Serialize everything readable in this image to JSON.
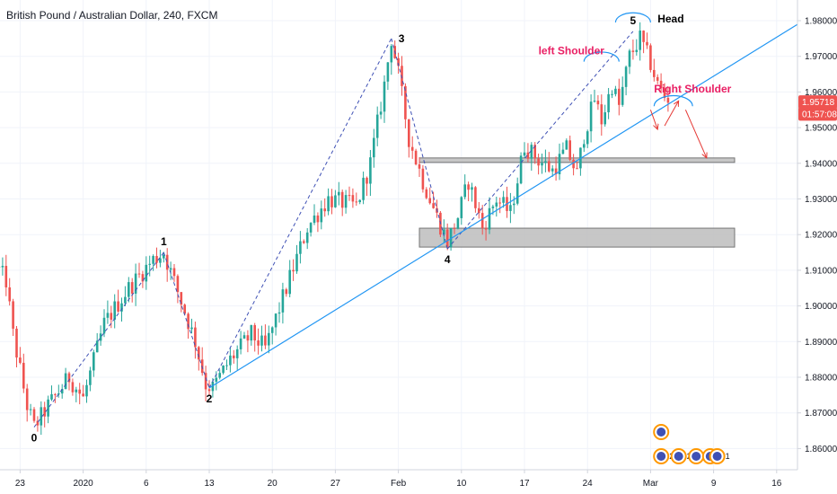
{
  "chart_data": {
    "type": "candlestick",
    "title": "British Pound / Australian Dollar, 240, FXCM",
    "ylim": [
      1.855,
      1.985
    ],
    "y_ticks": [
      1.86,
      1.87,
      1.88,
      1.89,
      1.9,
      1.91,
      1.92,
      1.93,
      1.94,
      1.95,
      1.96,
      1.97,
      1.98
    ],
    "y_tick_labels": [
      "1.86000",
      "1.87000",
      "1.88000",
      "1.89000",
      "1.90000",
      "1.91000",
      "1.92000",
      "1.93000",
      "1.94000",
      "1.95000",
      "1.96000",
      "1.97000",
      "1.98000"
    ],
    "x_ticks": [
      {
        "label": "23",
        "bar": 6
      },
      {
        "label": "2020",
        "bar": 24
      },
      {
        "label": "6",
        "bar": 42
      },
      {
        "label": "13",
        "bar": 60
      },
      {
        "label": "20",
        "bar": 78
      },
      {
        "label": "27",
        "bar": 96
      },
      {
        "label": "Feb",
        "bar": 114
      },
      {
        "label": "10",
        "bar": 132
      },
      {
        "label": "17",
        "bar": 150
      },
      {
        "label": "24",
        "bar": 168
      },
      {
        "label": "Mar",
        "bar": 186
      },
      {
        "label": "9",
        "bar": 204
      },
      {
        "label": "16",
        "bar": 222
      }
    ],
    "bar_count": 228,
    "price_path": [
      [
        0,
        1.91
      ],
      [
        2,
        1.907
      ],
      [
        4,
        1.892
      ],
      [
        8,
        1.872
      ],
      [
        10,
        1.866
      ],
      [
        14,
        1.872
      ],
      [
        20,
        1.88
      ],
      [
        24,
        1.874
      ],
      [
        30,
        1.895
      ],
      [
        37,
        1.905
      ],
      [
        44,
        1.913
      ],
      [
        47,
        1.915
      ],
      [
        51,
        1.904
      ],
      [
        56,
        1.89
      ],
      [
        59,
        1.878
      ],
      [
        61,
        1.877
      ],
      [
        66,
        1.885
      ],
      [
        72,
        1.892
      ],
      [
        76,
        1.888
      ],
      [
        82,
        1.905
      ],
      [
        88,
        1.922
      ],
      [
        94,
        1.93
      ],
      [
        102,
        1.928
      ],
      [
        106,
        1.94
      ],
      [
        110,
        1.962
      ],
      [
        112,
        1.975
      ],
      [
        114,
        1.965
      ],
      [
        117,
        1.947
      ],
      [
        121,
        1.935
      ],
      [
        125,
        1.925
      ],
      [
        128,
        1.918
      ],
      [
        131,
        1.925
      ],
      [
        134,
        1.935
      ],
      [
        138,
        1.922
      ],
      [
        142,
        1.93
      ],
      [
        146,
        1.926
      ],
      [
        150,
        1.945
      ],
      [
        154,
        1.941
      ],
      [
        158,
        1.938
      ],
      [
        162,
        1.944
      ],
      [
        165,
        1.937
      ],
      [
        167,
        1.948
      ],
      [
        170,
        1.958
      ],
      [
        172,
        1.952
      ],
      [
        175,
        1.962
      ],
      [
        177,
        1.956
      ],
      [
        180,
        1.97
      ],
      [
        183,
        1.975
      ],
      [
        186,
        1.968
      ],
      [
        188,
        1.962
      ],
      [
        191,
        1.957
      ]
    ],
    "last_candle_bar": 191,
    "wave_labels": [
      {
        "label": "0",
        "bar": 10,
        "price": 1.866,
        "pos": "below"
      },
      {
        "label": "1",
        "bar": 47,
        "price": 1.915,
        "pos": "above"
      },
      {
        "label": "2",
        "bar": 60,
        "price": 1.877,
        "pos": "below"
      },
      {
        "label": "3",
        "bar": 112,
        "price": 1.975,
        "pos": "right"
      },
      {
        "label": "4",
        "bar": 128,
        "price": 1.916,
        "pos": "below"
      },
      {
        "label": "5",
        "bar": 181,
        "price": 1.977,
        "pos": "above"
      }
    ],
    "wave_lines": [
      {
        "from": [
          10,
          1.866
        ],
        "to": [
          47,
          1.915
        ]
      },
      {
        "from": [
          47,
          1.915
        ],
        "to": [
          60,
          1.877
        ]
      },
      {
        "from": [
          60,
          1.877
        ],
        "to": [
          112,
          1.975
        ]
      },
      {
        "from": [
          112,
          1.975
        ],
        "to": [
          128,
          1.916
        ]
      },
      {
        "from": [
          128,
          1.916
        ],
        "to": [
          181,
          1.977
        ]
      }
    ],
    "trendline": {
      "from": [
        60,
        1.877
      ],
      "to": [
        228,
        1.979
      ]
    },
    "zones": [
      {
        "bar_start": 120,
        "bar_end": 210,
        "price_low": 1.9403,
        "price_high": 1.9415
      },
      {
        "bar_start": 120,
        "bar_end": 210,
        "price_low": 1.9165,
        "price_high": 1.9218
      }
    ],
    "annotations": [
      {
        "text": "left Shoulder",
        "bar": 154,
        "price": 1.9705
      },
      {
        "text": "Head",
        "bar": 188,
        "price": 1.9795
      },
      {
        "text": "Right Shoulder",
        "bar": 187,
        "price": 1.9598
      }
    ],
    "shoulder_arcs": [
      {
        "bar_start": 167,
        "bar_end": 177,
        "price": 1.9685
      },
      {
        "bar_start": 176,
        "bar_end": 186,
        "price": 1.9795
      },
      {
        "bar_start": 187,
        "bar_end": 198,
        "price": 1.956
      }
    ],
    "projection_arrows": [
      {
        "from": [
          186,
          1.955
        ],
        "to": [
          188,
          1.9495
        ]
      },
      {
        "from": [
          190,
          1.9505
        ],
        "to": [
          194,
          1.9575
        ]
      },
      {
        "from": [
          196,
          1.955
        ],
        "to": [
          202,
          1.9415
        ]
      }
    ],
    "price_tags": [
      {
        "text": "1.95718",
        "price": 1.95718
      },
      {
        "text": "01:57:08",
        "price": 1.95385
      }
    ],
    "event_icons": [
      {
        "label": "",
        "bar": 188,
        "row": 0
      },
      {
        "label": "2",
        "bar": 188,
        "row": 1
      },
      {
        "label": "2",
        "bar": 193,
        "row": 1
      },
      {
        "label": "4",
        "bar": 198,
        "row": 1
      },
      {
        "label": "2",
        "bar": 202,
        "row": 1
      },
      {
        "label": "1",
        "bar": 204,
        "row": 1
      }
    ],
    "colors": {
      "up": "#26a69a",
      "down": "#ef5350",
      "wave_dash": "#3f51b5",
      "trend": "#2196f3",
      "zone_fill": "#bdbdbd",
      "zone_border": "#757575",
      "annotation": "#e91e63",
      "arc": "#2196f3",
      "arrow": "#e53935",
      "price_tag": "#ef5350",
      "grid": "#f0f3fa",
      "axis_text": "#131722"
    }
  }
}
